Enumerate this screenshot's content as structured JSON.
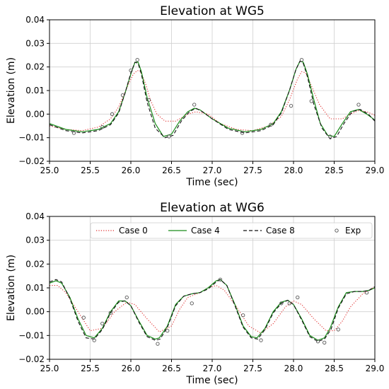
{
  "chart_data": [
    {
      "type": "line",
      "title": "Elevation at WG5",
      "xlabel": "Time (sec)",
      "ylabel": "Elevation (m)",
      "xlim": [
        25.0,
        29.0
      ],
      "ylim": [
        -0.02,
        0.04
      ],
      "xticks": [
        "25.0",
        "25.5",
        "26.0",
        "26.5",
        "27.0",
        "27.5",
        "28.0",
        "28.5",
        "29.0"
      ],
      "yticks": [
        "−0.02",
        "−0.01",
        "0.00",
        "0.01",
        "0.02",
        "0.03",
        "0.04"
      ],
      "grid": true,
      "legend": null,
      "series": [
        {
          "name": "Case 0",
          "style": "dotted",
          "color": "#e03030",
          "x": [
            25.0,
            25.2,
            25.4,
            25.6,
            25.75,
            25.85,
            25.95,
            26.03,
            26.08,
            26.12,
            26.18,
            26.24,
            26.32,
            26.42,
            26.55,
            26.7,
            26.8,
            26.95,
            27.1,
            27.3,
            27.5,
            27.7,
            27.85,
            27.95,
            28.05,
            28.1,
            28.15,
            28.22,
            28.32,
            28.45,
            28.6,
            28.7,
            28.8,
            28.9,
            29.0
          ],
          "y": [
            -0.005,
            -0.0065,
            -0.007,
            -0.0055,
            -0.002,
            0.003,
            0.011,
            0.017,
            0.0185,
            0.018,
            0.013,
            0.006,
            0.0,
            -0.003,
            -0.003,
            0.0,
            0.001,
            0.0,
            -0.004,
            -0.0065,
            -0.007,
            -0.005,
            -0.001,
            0.006,
            0.015,
            0.018,
            0.0175,
            0.012,
            0.004,
            -0.002,
            -0.002,
            0.0,
            0.0015,
            0.001,
            -0.0005
          ]
        },
        {
          "name": "Case 4",
          "style": "solid",
          "color": "#1a8c1a",
          "x": [
            25.0,
            25.2,
            25.4,
            25.6,
            25.75,
            25.85,
            25.93,
            26.0,
            26.05,
            26.09,
            26.13,
            26.2,
            26.3,
            26.4,
            26.5,
            26.6,
            26.7,
            26.78,
            26.85,
            27.0,
            27.2,
            27.4,
            27.6,
            27.75,
            27.85,
            27.95,
            28.03,
            28.08,
            28.12,
            28.17,
            28.25,
            28.33,
            28.42,
            28.5,
            28.6,
            28.7,
            28.8,
            28.9,
            29.0
          ],
          "y": [
            -0.004,
            -0.0065,
            -0.0075,
            -0.0065,
            -0.004,
            0.001,
            0.009,
            0.017,
            0.022,
            0.022,
            0.018,
            0.007,
            -0.004,
            -0.0095,
            -0.0085,
            -0.003,
            0.001,
            0.0025,
            0.0018,
            -0.002,
            -0.006,
            -0.0075,
            -0.0065,
            -0.004,
            0.001,
            0.01,
            0.019,
            0.0225,
            0.022,
            0.017,
            0.006,
            -0.004,
            -0.009,
            -0.0095,
            -0.004,
            0.001,
            0.002,
            0.0,
            -0.0025
          ]
        },
        {
          "name": "Case 8",
          "style": "dashed",
          "color": "#111111",
          "x": [
            25.0,
            25.2,
            25.4,
            25.6,
            25.75,
            25.85,
            25.93,
            26.0,
            26.05,
            26.09,
            26.13,
            26.2,
            26.3,
            26.42,
            26.52,
            26.62,
            26.72,
            26.8,
            26.88,
            27.0,
            27.2,
            27.4,
            27.6,
            27.75,
            27.85,
            27.95,
            28.03,
            28.08,
            28.12,
            28.17,
            28.25,
            28.35,
            28.45,
            28.53,
            28.62,
            28.72,
            28.82,
            28.92,
            29.0
          ],
          "y": [
            -0.0045,
            -0.007,
            -0.008,
            -0.007,
            -0.0045,
            0.0005,
            0.009,
            0.0175,
            0.022,
            0.0215,
            0.017,
            0.005,
            -0.006,
            -0.01,
            -0.009,
            -0.003,
            0.001,
            0.0025,
            0.001,
            -0.002,
            -0.0065,
            -0.008,
            -0.007,
            -0.0045,
            0.0005,
            0.01,
            0.019,
            0.0225,
            0.0215,
            0.016,
            0.004,
            -0.006,
            -0.0105,
            -0.0095,
            -0.004,
            0.001,
            0.002,
            0.0,
            -0.003
          ]
        },
        {
          "name": "Exp",
          "style": "markers",
          "color": "#555555",
          "x": [
            25.3,
            25.65,
            25.77,
            25.9,
            26.0,
            26.08,
            26.22,
            26.47,
            26.78,
            27.37,
            27.72,
            27.97,
            28.1,
            28.22,
            28.45,
            28.8
          ],
          "y": [
            -0.008,
            -0.0055,
            0.0,
            0.008,
            0.0185,
            0.023,
            0.006,
            -0.0095,
            0.004,
            -0.008,
            -0.0045,
            0.0035,
            0.023,
            0.0055,
            -0.0095,
            0.004
          ]
        }
      ]
    },
    {
      "type": "line",
      "title": "Elevation at WG6",
      "xlabel": "Time (sec)",
      "ylabel": "Elevation (m)",
      "xlim": [
        25.0,
        29.0
      ],
      "ylim": [
        -0.02,
        0.04
      ],
      "xticks": [
        "25.0",
        "25.5",
        "26.0",
        "26.5",
        "27.0",
        "27.5",
        "28.0",
        "28.5",
        "29.0"
      ],
      "yticks": [
        "−0.02",
        "−0.01",
        "0.00",
        "0.01",
        "0.02",
        "0.03",
        "0.04"
      ],
      "grid": true,
      "legend": "top",
      "series": [
        {
          "name": "Case 0",
          "style": "dotted",
          "color": "#e03030",
          "x": [
            25.0,
            25.1,
            25.2,
            25.35,
            25.5,
            25.65,
            25.8,
            25.95,
            26.05,
            26.2,
            26.35,
            26.5,
            26.6,
            26.7,
            26.85,
            26.95,
            27.05,
            27.15,
            27.3,
            27.45,
            27.6,
            27.75,
            27.9,
            28.0,
            28.1,
            28.25,
            28.4,
            28.5,
            28.6,
            28.7,
            28.85,
            29.0
          ],
          "y": [
            0.011,
            0.011,
            0.008,
            0.0,
            -0.008,
            -0.007,
            0.0,
            0.004,
            0.003,
            -0.003,
            -0.0085,
            -0.006,
            0.001,
            0.006,
            0.008,
            0.01,
            0.011,
            0.009,
            0.002,
            -0.006,
            -0.009,
            -0.005,
            0.002,
            0.0045,
            0.003,
            -0.003,
            -0.008,
            -0.008,
            -0.004,
            0.002,
            0.0075,
            0.0105
          ]
        },
        {
          "name": "Case 4",
          "style": "solid",
          "color": "#1a8c1a",
          "x": [
            25.0,
            25.08,
            25.15,
            25.25,
            25.35,
            25.45,
            25.55,
            25.65,
            25.75,
            25.85,
            25.93,
            26.0,
            26.1,
            26.2,
            26.3,
            26.35,
            26.45,
            26.55,
            26.65,
            26.75,
            26.85,
            26.95,
            27.05,
            27.1,
            27.18,
            27.28,
            27.38,
            27.48,
            27.55,
            27.65,
            27.75,
            27.85,
            27.93,
            28.0,
            28.1,
            28.2,
            28.3,
            28.38,
            28.45,
            28.55,
            28.65,
            28.75,
            28.85,
            28.93,
            29.0
          ],
          "y": [
            0.012,
            0.013,
            0.012,
            0.006,
            -0.003,
            -0.01,
            -0.011,
            -0.007,
            0.0,
            0.0045,
            0.0045,
            0.0025,
            -0.004,
            -0.01,
            -0.0115,
            -0.011,
            -0.006,
            0.003,
            0.0065,
            0.0075,
            0.008,
            0.01,
            0.013,
            0.0135,
            0.011,
            0.003,
            -0.006,
            -0.0105,
            -0.011,
            -0.007,
            0.0,
            0.004,
            0.0048,
            0.003,
            -0.003,
            -0.01,
            -0.012,
            -0.011,
            -0.007,
            0.002,
            0.008,
            0.0085,
            0.0085,
            0.009,
            0.01
          ]
        },
        {
          "name": "Case 8",
          "style": "dashed",
          "color": "#111111",
          "x": [
            25.0,
            25.08,
            25.15,
            25.25,
            25.35,
            25.45,
            25.55,
            25.65,
            25.75,
            25.85,
            25.93,
            26.0,
            26.1,
            26.2,
            26.3,
            26.36,
            26.45,
            26.55,
            26.65,
            26.75,
            26.85,
            26.95,
            27.05,
            27.1,
            27.18,
            27.28,
            27.38,
            27.48,
            27.56,
            27.65,
            27.75,
            27.85,
            27.93,
            28.0,
            28.1,
            28.2,
            28.3,
            28.38,
            28.46,
            28.55,
            28.65,
            28.75,
            28.85,
            28.93,
            29.0
          ],
          "y": [
            0.0125,
            0.0135,
            0.0125,
            0.0055,
            -0.004,
            -0.011,
            -0.0115,
            -0.0075,
            -0.0005,
            0.004,
            0.0045,
            0.0025,
            -0.0045,
            -0.0105,
            -0.012,
            -0.0115,
            -0.0065,
            0.0025,
            0.0065,
            0.0075,
            0.008,
            0.0095,
            0.0125,
            0.0135,
            0.011,
            0.0025,
            -0.0065,
            -0.011,
            -0.0115,
            -0.0075,
            -0.0005,
            0.0035,
            0.0048,
            0.003,
            -0.0035,
            -0.0105,
            -0.0125,
            -0.0115,
            -0.0075,
            0.0015,
            0.0075,
            0.0085,
            0.0085,
            0.009,
            0.0105
          ]
        },
        {
          "name": "Exp",
          "style": "markers",
          "color": "#555555",
          "x": [
            25.42,
            25.55,
            25.65,
            25.75,
            25.95,
            26.33,
            26.45,
            26.75,
            27.1,
            27.38,
            27.6,
            27.85,
            27.95,
            28.05,
            28.3,
            28.38,
            28.55,
            28.9
          ],
          "y": [
            -0.0025,
            -0.012,
            -0.005,
            -0.0005,
            0.006,
            -0.0135,
            -0.008,
            0.0035,
            0.0135,
            -0.0015,
            -0.012,
            0.0035,
            0.0035,
            0.006,
            -0.0125,
            -0.013,
            -0.0075,
            0.008
          ]
        }
      ]
    }
  ]
}
